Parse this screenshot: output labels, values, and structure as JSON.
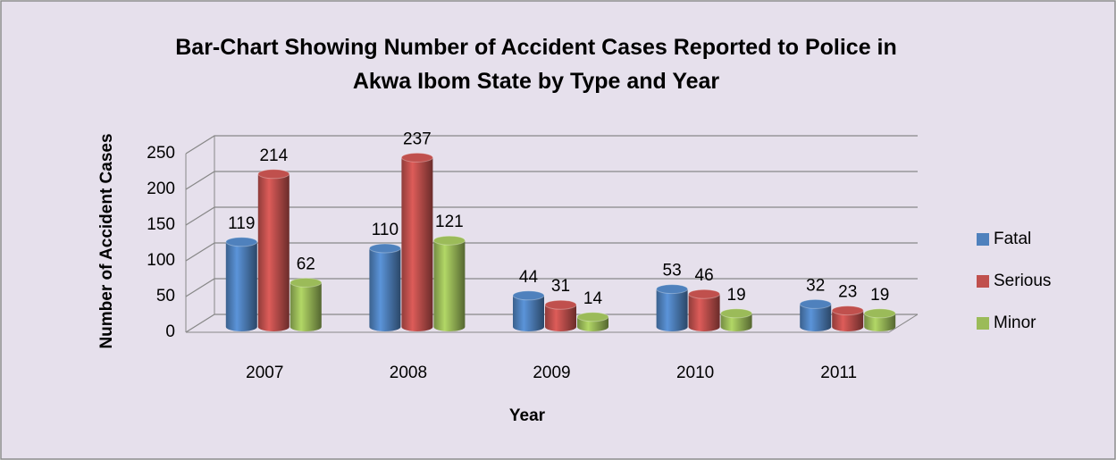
{
  "chart_data": {
    "type": "bar",
    "title": "Bar-Chart Showing Number of Accident Cases Reported to Police in Akwa Ibom State by Type and Year",
    "x_label": "Year",
    "y_label": "Number of Accident Cases",
    "categories": [
      "2007",
      "2008",
      "2009",
      "2010",
      "2011"
    ],
    "series": [
      {
        "name": "Fatal",
        "color": "#4f81bd",
        "values": [
          119,
          110,
          44,
          53,
          32
        ]
      },
      {
        "name": "Serious",
        "color": "#c0504d",
        "values": [
          214,
          237,
          31,
          46,
          23
        ]
      },
      {
        "name": "Minor",
        "color": "#9bbb59",
        "values": [
          62,
          121,
          14,
          19,
          19
        ]
      }
    ],
    "ylim": [
      0,
      250
    ],
    "yticks": [
      0,
      50,
      100,
      150,
      200,
      250
    ],
    "grid": true,
    "legend": "right"
  }
}
